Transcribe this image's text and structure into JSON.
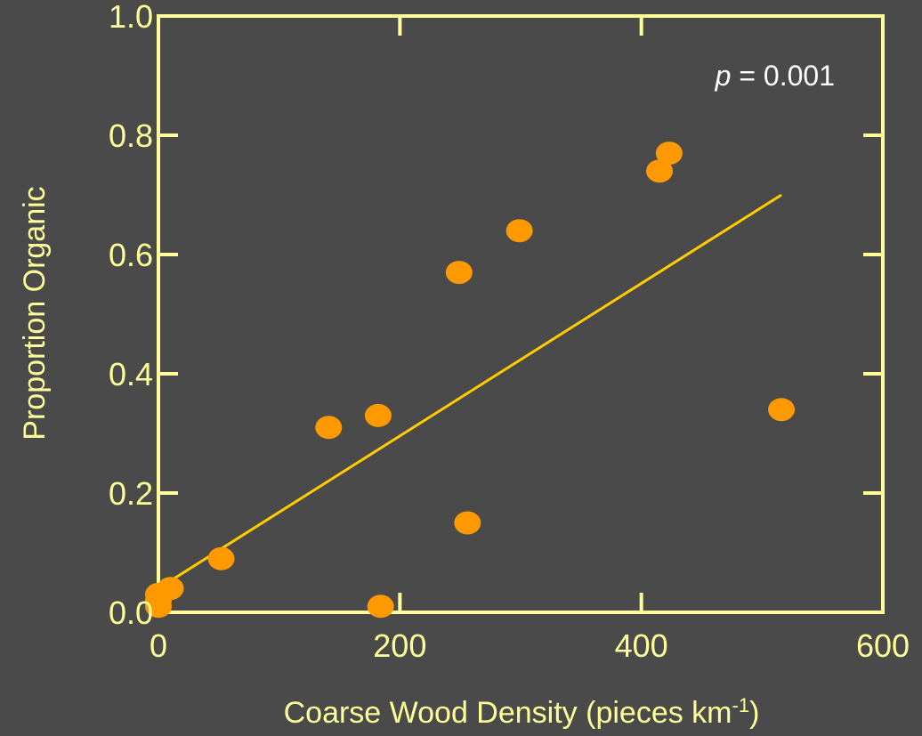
{
  "colors": {
    "background": "#4a4a4a",
    "axis": "#ffff99",
    "text": "#ffff99",
    "points": "#ff9900",
    "fit_line": "#ffcc00",
    "annotation": "#ffffff"
  },
  "chart_data": {
    "type": "scatter",
    "title": "",
    "xlabel": "Coarse Wood Density (pieces km",
    "xlabel_sup": "-1",
    "xlabel_tail": ")",
    "ylabel": "Proportion Organic",
    "xlim": [
      0,
      600
    ],
    "ylim": [
      0,
      1.0
    ],
    "xticks": [
      0,
      200,
      400,
      600
    ],
    "xtick_labels": [
      "0",
      "200",
      "400",
      "600"
    ],
    "yticks": [
      0,
      0.2,
      0.4,
      0.6,
      0.8,
      1.0
    ],
    "ytick_labels": [
      "0.0",
      "0.2",
      "0.4",
      "0.6",
      "0.8",
      "1.0"
    ],
    "grid": false,
    "annotation": {
      "p_symbol": "p",
      "text": " = 0.001"
    },
    "points": [
      {
        "x": 0,
        "y": 0.01
      },
      {
        "x": 0,
        "y": 0.02
      },
      {
        "x": 0,
        "y": 0.03
      },
      {
        "x": 10,
        "y": 0.04
      },
      {
        "x": 52,
        "y": 0.09
      },
      {
        "x": 141,
        "y": 0.31
      },
      {
        "x": 182,
        "y": 0.33
      },
      {
        "x": 184,
        "y": 0.01
      },
      {
        "x": 249,
        "y": 0.57
      },
      {
        "x": 256,
        "y": 0.15
      },
      {
        "x": 299,
        "y": 0.64
      },
      {
        "x": 415,
        "y": 0.74
      },
      {
        "x": 423,
        "y": 0.77
      },
      {
        "x": 516,
        "y": 0.34
      }
    ],
    "fit_line": {
      "x1": 0,
      "y1": 0.04,
      "x2": 516,
      "y2": 0.7
    }
  }
}
